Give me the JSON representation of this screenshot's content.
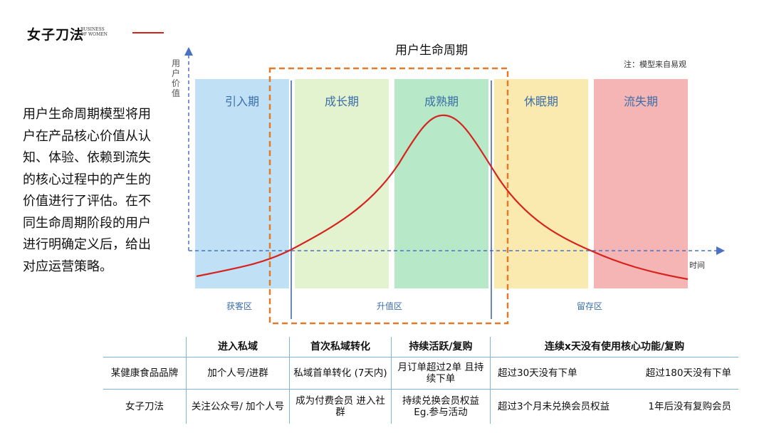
{
  "logo": {
    "main": "女子刀法",
    "sub_line1": "BUSINESS",
    "sub_line2": "OF WOMEN",
    "accent": "#d6231e"
  },
  "description": "用户生命周期模型将用户在产品核心价值从认知、体验、依赖到流失的核心过程中的产生的价值进行了评估。在不同生命周期阶段的用户进行明确定义后，给出对应运营策略。",
  "diagram": {
    "title": "用户生命周期",
    "note": "注：模型来自易观",
    "y_axis_label": "用户价值",
    "x_axis_label": "时间",
    "stages": [
      {
        "label": "引入期",
        "color": "#bfe0f5"
      },
      {
        "label": "成长期",
        "color": "#e3f2cf"
      },
      {
        "label": "成熟期",
        "color": "#b7e8c8"
      },
      {
        "label": "休眠期",
        "color": "#fbeab0"
      },
      {
        "label": "流失期",
        "color": "#f6b5b5"
      }
    ],
    "zones": [
      "获客区",
      "升值区",
      "留存区"
    ],
    "curve_color": "#d6231e",
    "highlight_box_color": "#e07b2a",
    "axis_color": "#4a72c4"
  },
  "table": {
    "headers": [
      "进入私域",
      "首次私域转化",
      "持续活跃/复购",
      "连续x天没有使用核心功能/复购"
    ],
    "rows": [
      {
        "name": "某健康食品品牌",
        "cells": [
          "加个人号/进群",
          "私域首单转化 (7天内)",
          "月订单超过2单 且持续下单"
        ],
        "last_a": "超过30天没有下单",
        "last_b": "超过180天没有下单"
      },
      {
        "name": "女子刀法",
        "cells": [
          "关注公众号/ 加个人号",
          "成为付费会员 进入社群",
          "持续兑换会员权益 Eg.参与活动"
        ],
        "last_a": "超过3个月未兑换会员权益",
        "last_b": "1年后没有复购会员"
      }
    ]
  }
}
